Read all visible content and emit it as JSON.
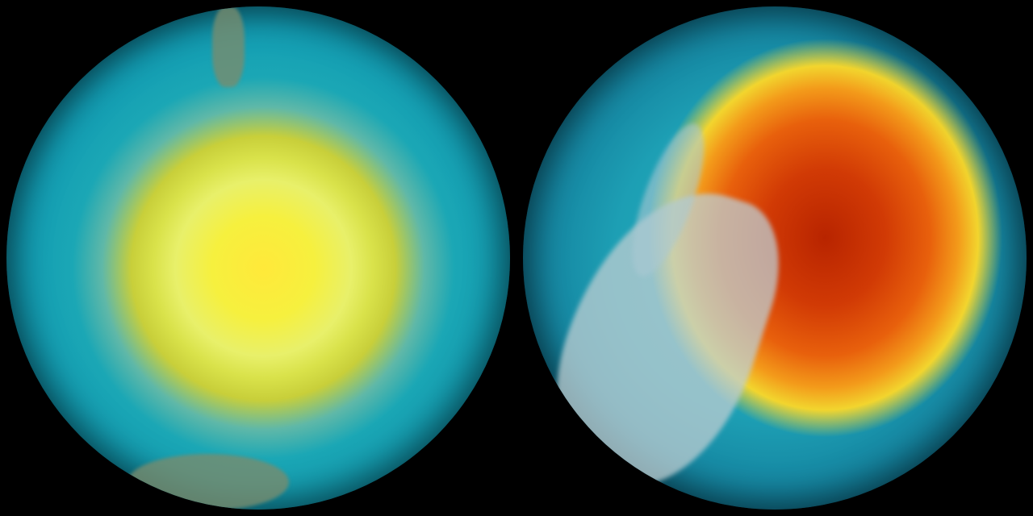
{
  "globes": [
    {
      "id": "left",
      "palette": [
        "#ffe93a",
        "#d9e24a",
        "#1ba7b5",
        "#0b5a78"
      ]
    },
    {
      "id": "right",
      "palette": [
        "#b82400",
        "#e8600c",
        "#f2d52e",
        "#1d9fb4",
        "#0b5878"
      ]
    }
  ],
  "background_color": "#000000"
}
